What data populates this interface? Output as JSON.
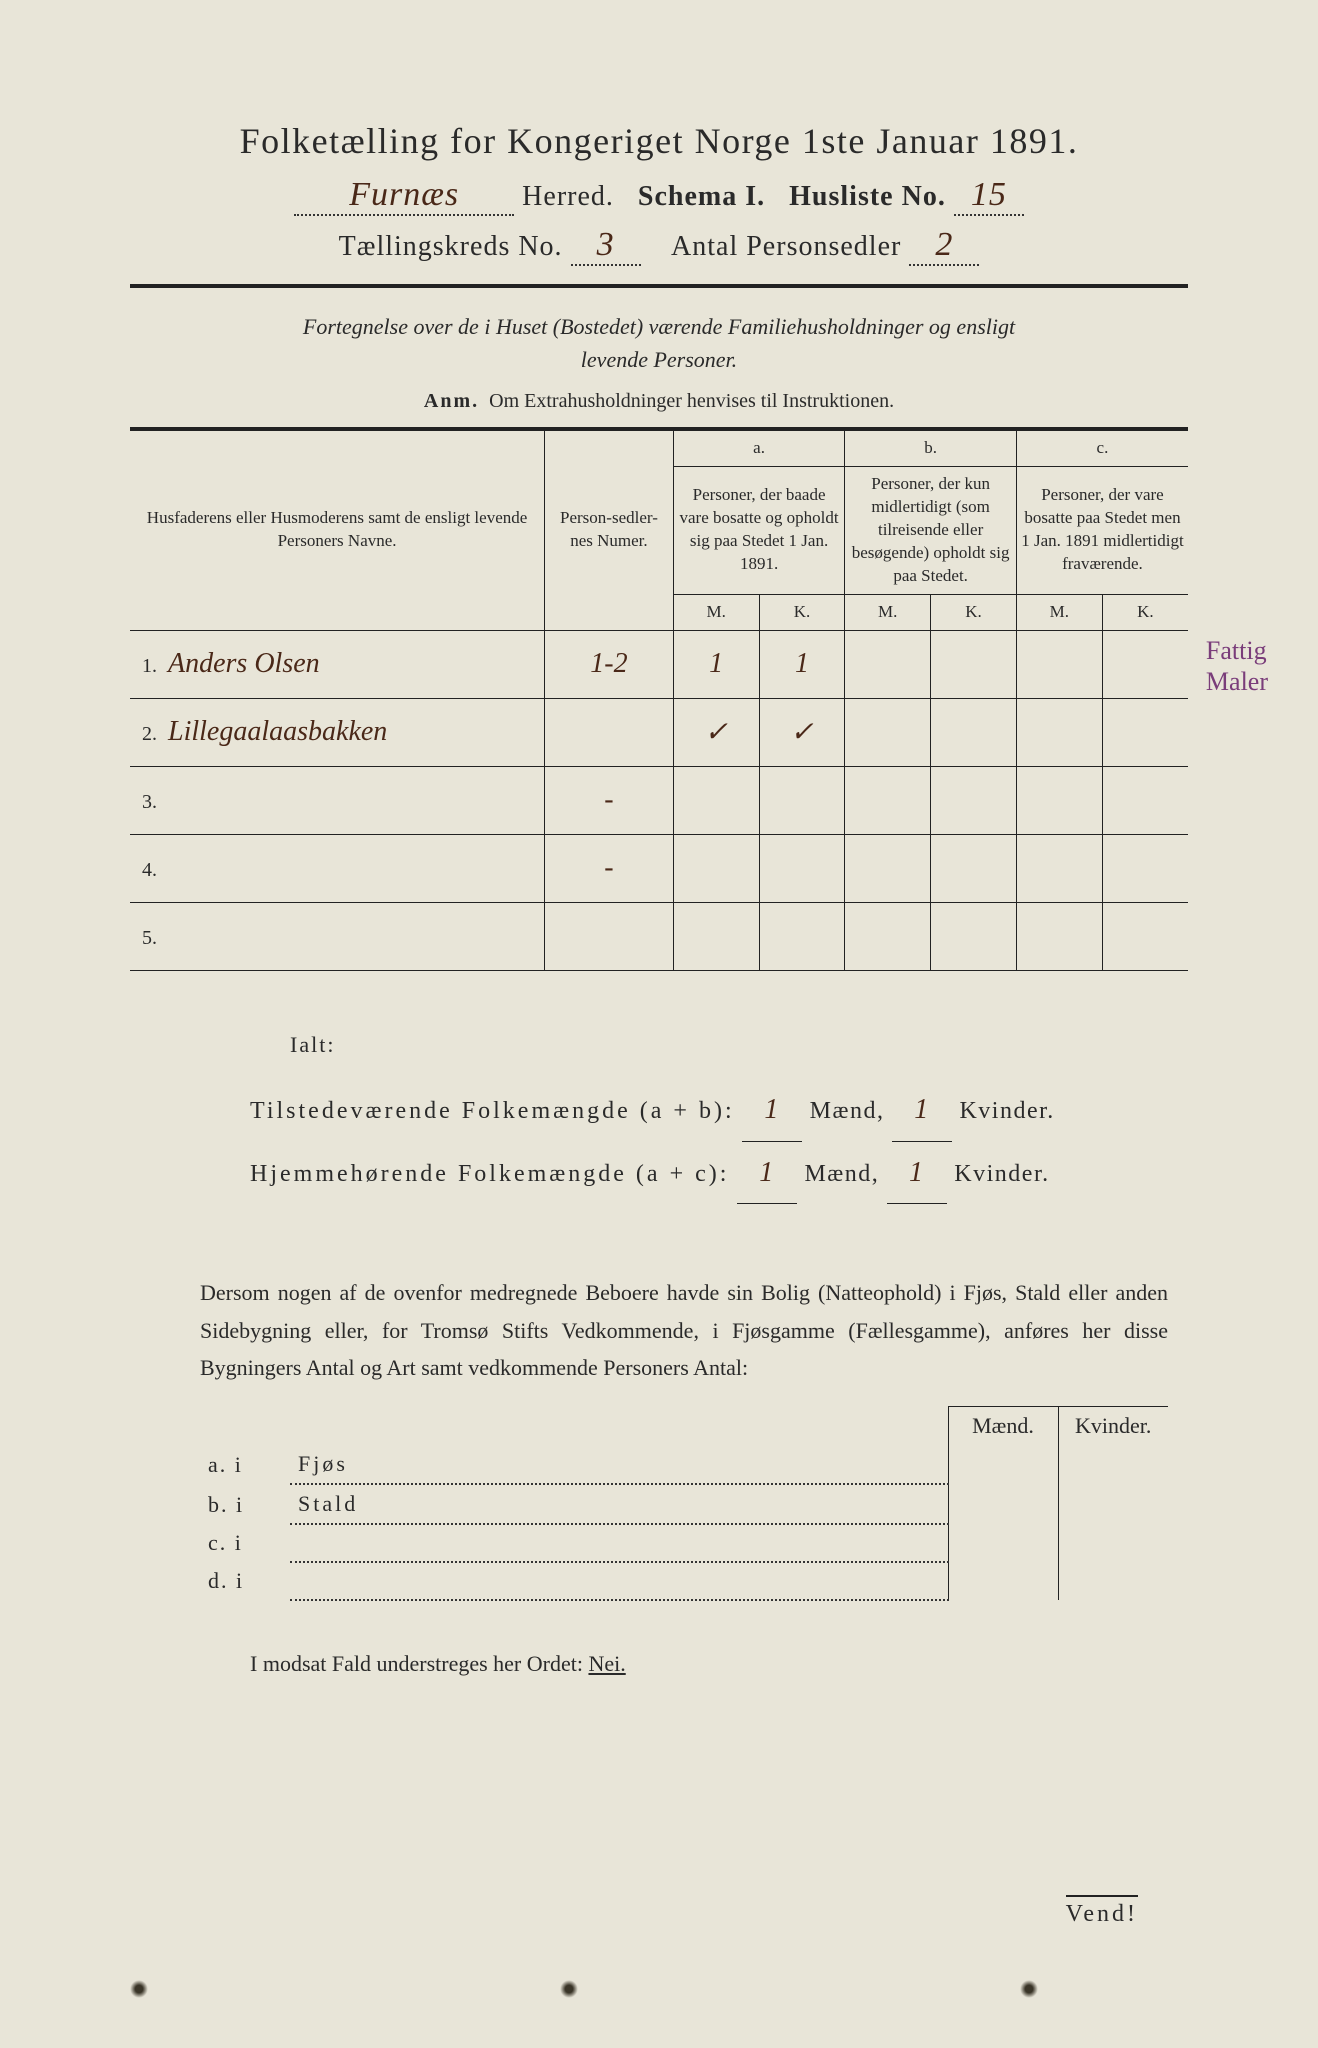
{
  "colors": {
    "paper": "#e8e5d8",
    "ink": "#2a2a2a",
    "handwriting": "#4a2818",
    "margin_note": "#7a3d7a"
  },
  "typography": {
    "title_fontsize": 36,
    "header_fontsize": 28,
    "body_fontsize": 22,
    "table_fontsize": 18,
    "handwriting_family": "Brush Script MT"
  },
  "header": {
    "title": "Folketælling for Kongeriget Norge 1ste Januar 1891.",
    "herred_handwritten": "Furnæs",
    "herred_label": "Herred.",
    "schema_label": "Schema I.",
    "husliste_label": "Husliste No.",
    "husliste_no": "15",
    "kreds_label": "Tællingskreds No.",
    "kreds_no": "3",
    "antal_label": "Antal Personsedler",
    "antal_no": "2"
  },
  "subtitle": {
    "line1": "Fortegnelse over de i Huset (Bostedet) værende Familiehusholdninger og ensligt",
    "line2": "levende Personer."
  },
  "anm": {
    "label": "Anm.",
    "text": "Om Extrahusholdninger henvises til Instruktionen."
  },
  "table": {
    "col_names": "Husfaderens eller Husmoderens samt de ensligt levende Personers Navne.",
    "col_num": "Person-sedler-nes Numer.",
    "col_a_label": "a.",
    "col_a": "Personer, der baade vare bosatte og opholdt sig paa Stedet 1 Jan. 1891.",
    "col_b_label": "b.",
    "col_b": "Personer, der kun midlertidigt (som tilreisende eller besøgende) opholdt sig paa Stedet.",
    "col_c_label": "c.",
    "col_c": "Personer, der vare bosatte paa Stedet men 1 Jan. 1891 midlertidigt fraværende.",
    "m": "M.",
    "k": "K.",
    "rows": [
      {
        "n": "1.",
        "name": "Anders Olsen",
        "num": "1-2",
        "a_m": "1",
        "a_k": "1",
        "b_m": "",
        "b_k": "",
        "c_m": "",
        "c_k": ""
      },
      {
        "n": "2.",
        "name": "Lillegaalaasbakken",
        "num": "",
        "a_m": "✓",
        "a_k": "✓",
        "b_m": "",
        "b_k": "",
        "c_m": "",
        "c_k": ""
      },
      {
        "n": "3.",
        "name": "",
        "num": "-",
        "a_m": "",
        "a_k": "",
        "b_m": "",
        "b_k": "",
        "c_m": "",
        "c_k": ""
      },
      {
        "n": "4.",
        "name": "",
        "num": "-",
        "a_m": "",
        "a_k": "",
        "b_m": "",
        "b_k": "",
        "c_m": "",
        "c_k": ""
      },
      {
        "n": "5.",
        "name": "",
        "num": "",
        "a_m": "",
        "a_k": "",
        "b_m": "",
        "b_k": "",
        "c_m": "",
        "c_k": ""
      }
    ]
  },
  "margin_note": {
    "line1": "Fattig",
    "line2": "Maler"
  },
  "totals": {
    "ialt": "Ialt:",
    "tilstede_label": "Tilstedeværende Folkemængde (a + b):",
    "tilstede_m": "1",
    "tilstede_k": "1",
    "hjemme_label": "Hjemmehørende Folkemængde (a + c):",
    "hjemme_m": "1",
    "hjemme_k": "1",
    "maend": "Mænd,",
    "kvinder": "Kvinder."
  },
  "para": "Dersom nogen af de ovenfor medregnede Beboere havde sin Bolig (Natteophold) i Fjøs, Stald eller anden Sidebygning eller, for Tromsø Stifts Vedkommende, i Fjøsgamme (Fællesgamme), anføres her disse Bygningers Antal og Art samt vedkommende Personers Antal:",
  "buildings": {
    "maend": "Mænd.",
    "kvinder": "Kvinder.",
    "rows": [
      {
        "label": "a.  i",
        "text": "Fjøs"
      },
      {
        "label": "b.  i",
        "text": "Stald"
      },
      {
        "label": "c.  i",
        "text": ""
      },
      {
        "label": "d.  i",
        "text": ""
      }
    ]
  },
  "nei": {
    "text": "I modsat Fald understreges her Ordet:",
    "word": "Nei."
  },
  "vend": "Vend!"
}
